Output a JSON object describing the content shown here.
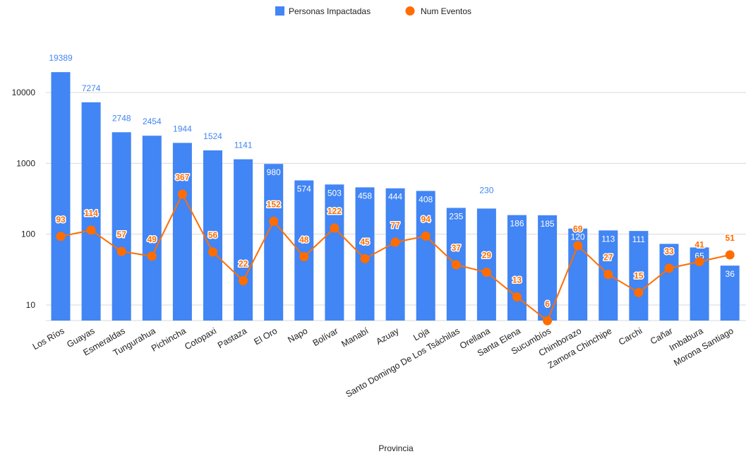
{
  "chart_data": {
    "type": "bar",
    "xlabel": "Provincia",
    "ylabel": "",
    "y_scale": "log",
    "ylim": [
      6,
      25000
    ],
    "y_ticks": [
      10,
      100,
      1000,
      10000
    ],
    "grid": true,
    "legend_position": "top",
    "categories": [
      "Los Ríos",
      "Guayas",
      "Esmeraldas",
      "Tungurahua",
      "Pichincha",
      "Cotopaxi",
      "Pastaza",
      "El Oro",
      "Napo",
      "Bolívar",
      "Manabí",
      "Azuay",
      "Loja",
      "Santo Domingo De Los Tsáchilas",
      "Orellana",
      "Santa Elena",
      "Sucumbíos",
      "Chimborazo",
      "Zamora Chinchipe",
      "Carchi",
      "Cañar",
      "Imbabura",
      "Morona Santiago"
    ],
    "series": [
      {
        "name": "Personas Impactadas",
        "type": "bar",
        "color": "#4285f4",
        "values": [
          19389,
          7274,
          2748,
          2454,
          1944,
          1524,
          1141,
          980,
          574,
          503,
          458,
          444,
          408,
          235,
          230,
          186,
          185,
          120,
          113,
          111,
          73,
          65,
          36
        ]
      },
      {
        "name": "Num Eventos",
        "type": "line",
        "color": "#ff6d01",
        "values": [
          93,
          114,
          57,
          49,
          367,
          56,
          22,
          152,
          48,
          122,
          45,
          77,
          94,
          37,
          29,
          13,
          6,
          69,
          27,
          15,
          33,
          41,
          51
        ]
      }
    ]
  }
}
